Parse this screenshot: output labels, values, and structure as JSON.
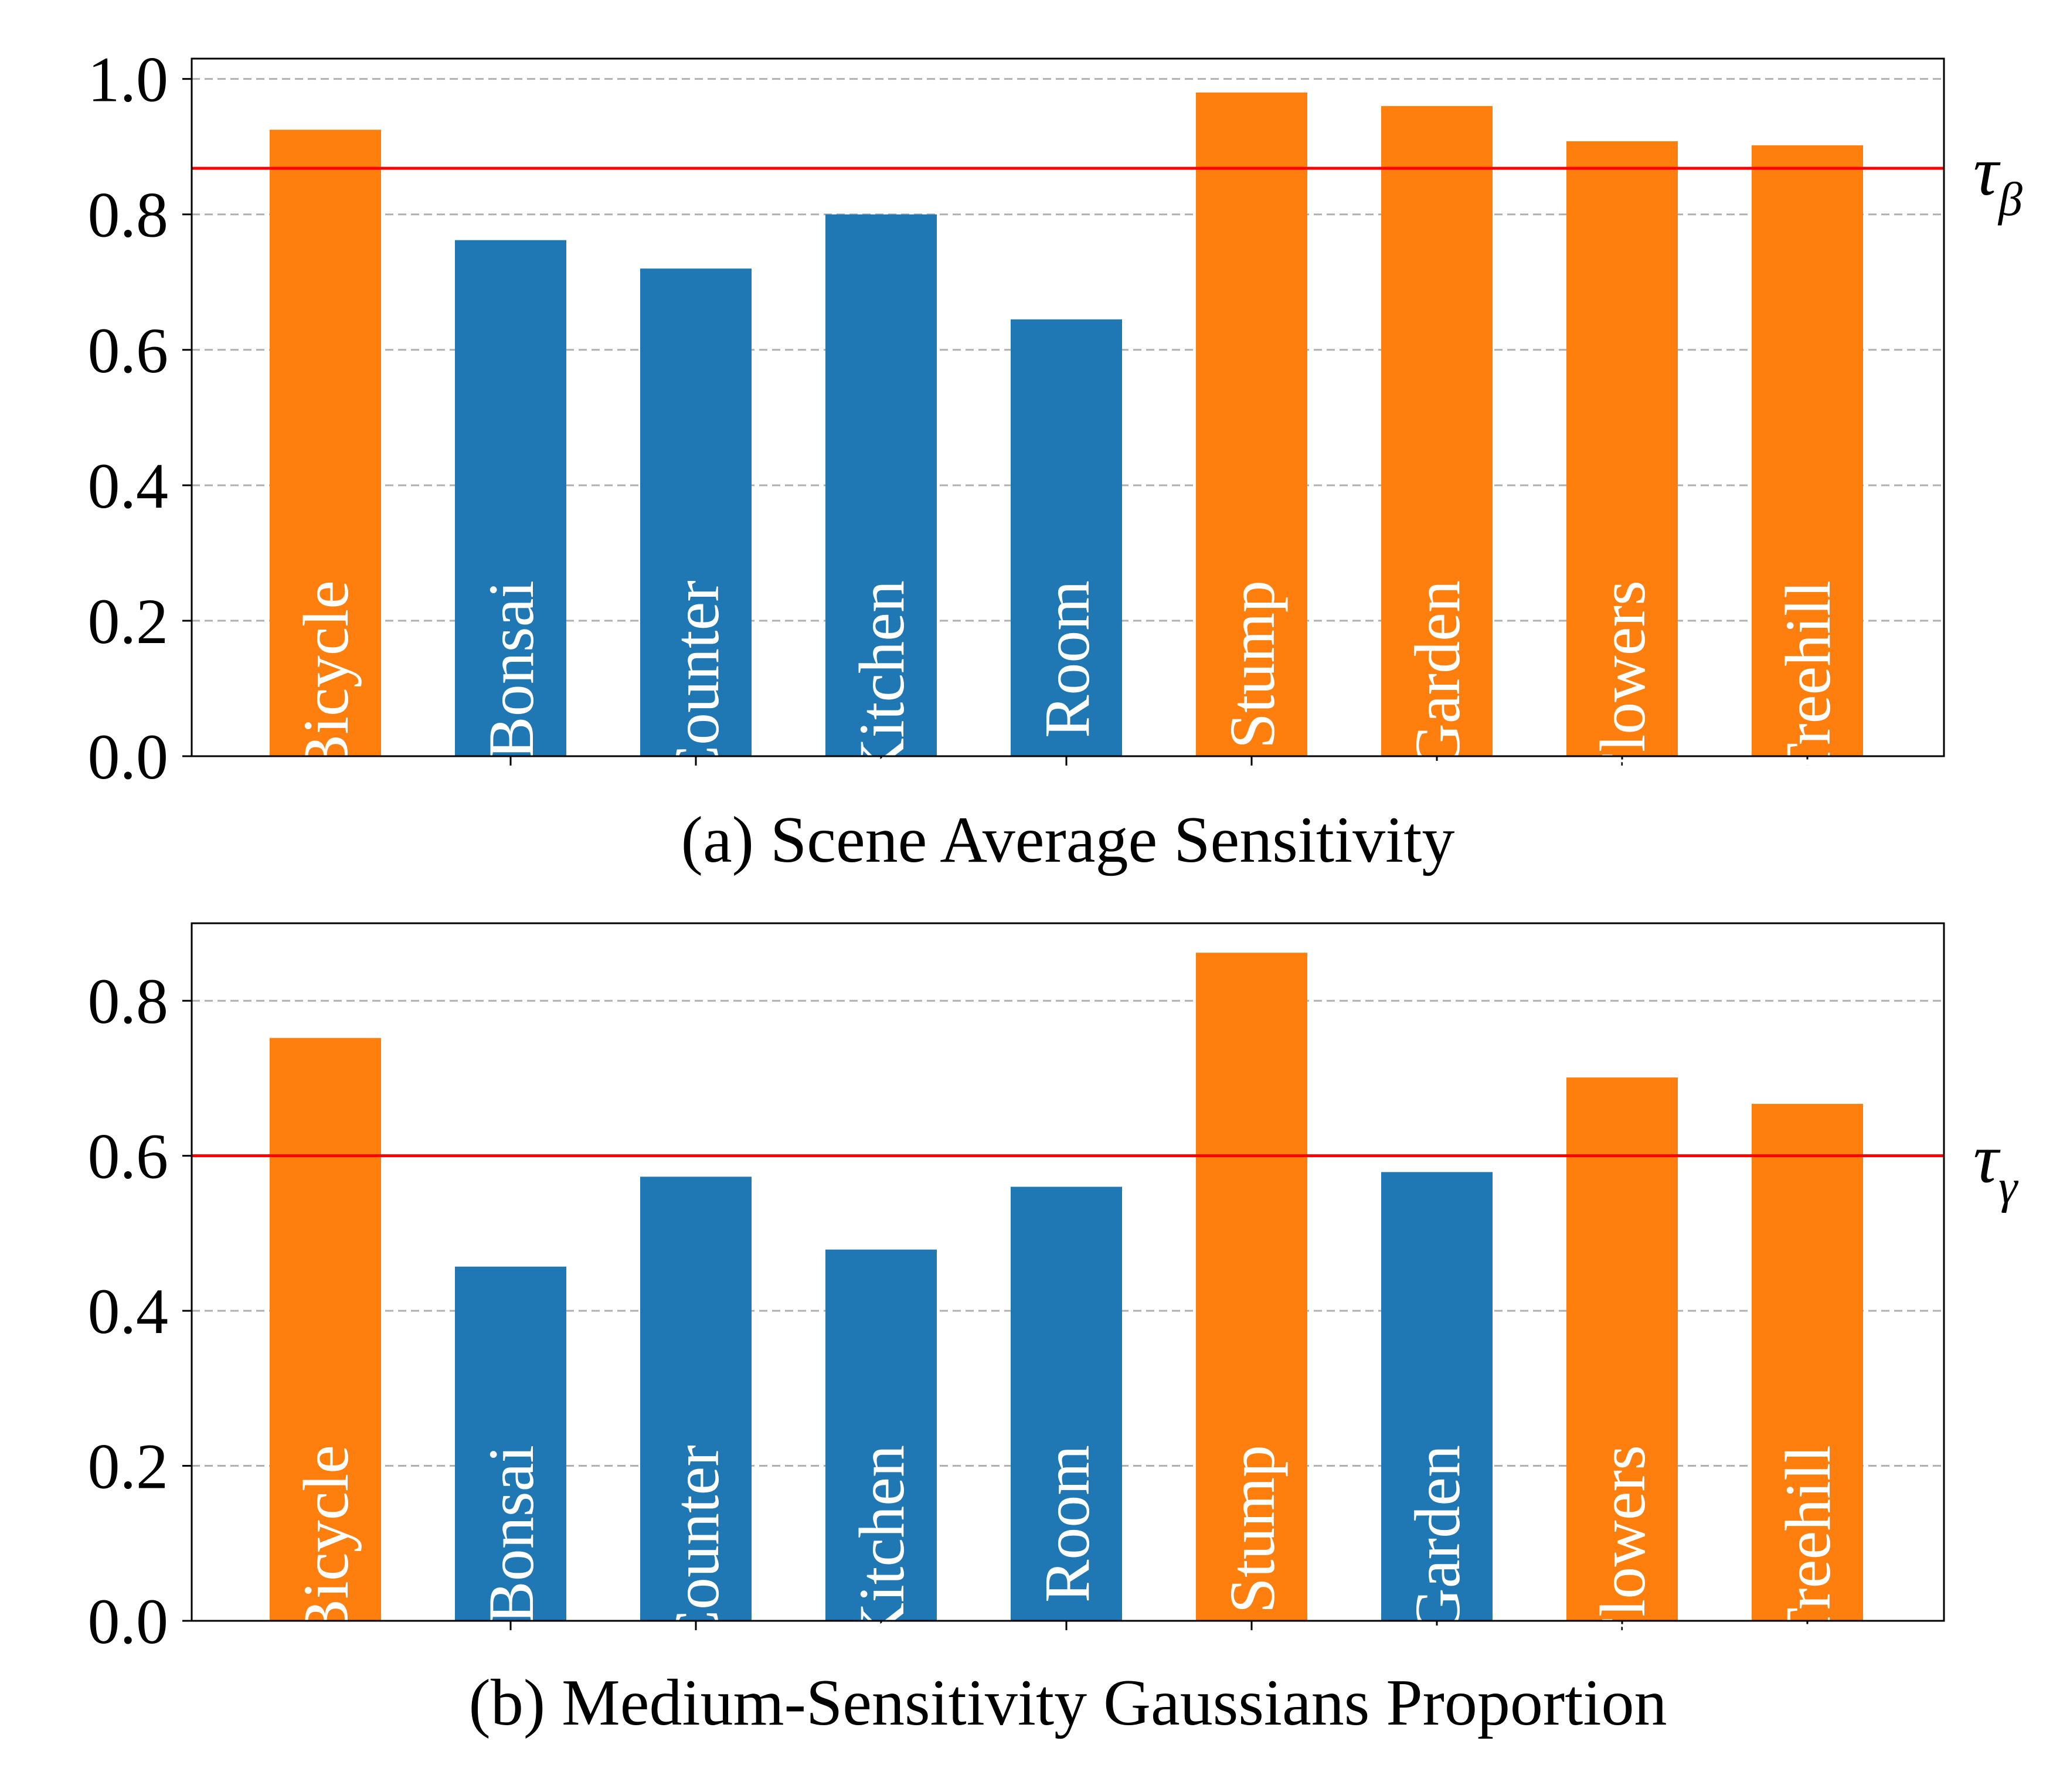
{
  "chart_data": [
    {
      "type": "bar",
      "title": "(a) Scene Average Sensitivity",
      "categories": [
        "Bicycle",
        "Bonsai",
        "Counter",
        "Kitchen",
        "Room",
        "Stump",
        "Garden",
        "Flowers",
        "Treehill"
      ],
      "values": [
        0.925,
        0.762,
        0.72,
        0.8,
        0.645,
        0.98,
        0.96,
        0.908,
        0.902
      ],
      "colors": [
        "#ff7f0e",
        "#1f77b4",
        "#1f77b4",
        "#1f77b4",
        "#1f77b4",
        "#ff7f0e",
        "#ff7f0e",
        "#ff7f0e",
        "#ff7f0e"
      ],
      "ylim": [
        0,
        1.03
      ],
      "yticks": [
        "0.0",
        "0.2",
        "0.4",
        "0.6",
        "0.8",
        "1.0"
      ],
      "ytick_values": [
        0,
        0.2,
        0.4,
        0.6,
        0.8,
        1.0
      ],
      "grid": "horizontal dashed",
      "threshold": {
        "value": 0.868,
        "label": "τ",
        "subscript": "β",
        "color": "#ff0000"
      }
    },
    {
      "type": "bar",
      "title": "(b) Medium-Sensitivity Gaussians Proportion",
      "categories": [
        "Bicycle",
        "Bonsai",
        "Counter",
        "Kitchen",
        "Room",
        "Stump",
        "Garden",
        "Flowers",
        "Treehill"
      ],
      "values": [
        0.752,
        0.457,
        0.573,
        0.479,
        0.56,
        0.862,
        0.579,
        0.701,
        0.667
      ],
      "colors": [
        "#ff7f0e",
        "#1f77b4",
        "#1f77b4",
        "#1f77b4",
        "#1f77b4",
        "#ff7f0e",
        "#1f77b4",
        "#ff7f0e",
        "#ff7f0e"
      ],
      "ylim": [
        0,
        0.9
      ],
      "yticks": [
        "0.0",
        "0.2",
        "0.4",
        "0.6",
        "0.8"
      ],
      "ytick_values": [
        0,
        0.2,
        0.4,
        0.6,
        0.8
      ],
      "grid": "horizontal dashed",
      "threshold": {
        "value": 0.6,
        "label": "τ",
        "subscript": "γ",
        "color": "#ff0000"
      }
    }
  ]
}
